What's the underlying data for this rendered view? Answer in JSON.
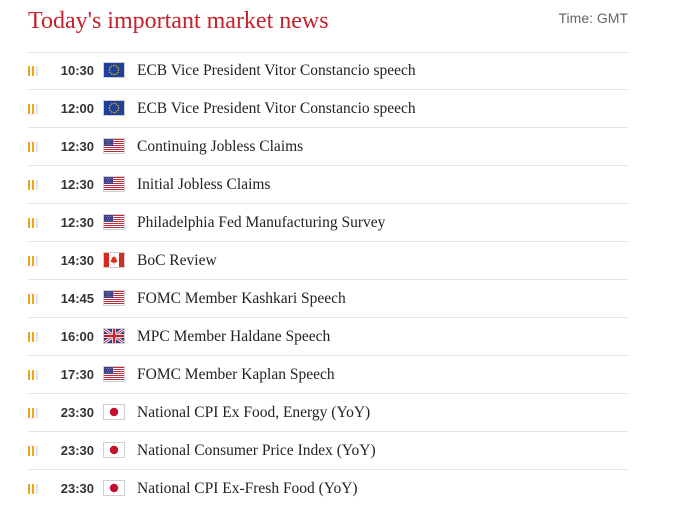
{
  "header": {
    "title": "Today's important market news",
    "timezone": "Time: GMT"
  },
  "events": [
    {
      "time": "10:30",
      "flag": "eu-flag-icon",
      "event": "ECB Vice President Vitor Constancio speech",
      "impact_level": 2
    },
    {
      "time": "12:00",
      "flag": "eu-flag-icon",
      "event": "ECB Vice President Vitor Constancio speech",
      "impact_level": 2
    },
    {
      "time": "12:30",
      "flag": "us-flag-icon",
      "event": "Continuing Jobless Claims",
      "impact_level": 2
    },
    {
      "time": "12:30",
      "flag": "us-flag-icon",
      "event": "Initial Jobless Claims",
      "impact_level": 2
    },
    {
      "time": "12:30",
      "flag": "us-flag-icon",
      "event": "Philadelphia Fed Manufacturing Survey",
      "impact_level": 2
    },
    {
      "time": "14:30",
      "flag": "ca-flag-icon",
      "event": "BoC Review",
      "impact_level": 2
    },
    {
      "time": "14:45",
      "flag": "us-flag-icon",
      "event": "FOMC Member Kashkari Speech",
      "impact_level": 2
    },
    {
      "time": "16:00",
      "flag": "uk-flag-icon",
      "event": "MPC Member Haldane Speech",
      "impact_level": 2
    },
    {
      "time": "17:30",
      "flag": "us-flag-icon",
      "event": "FOMC Member Kaplan Speech",
      "impact_level": 2
    },
    {
      "time": "23:30",
      "flag": "jp-flag-icon",
      "event": "National CPI Ex Food, Energy (YoY)",
      "impact_level": 2
    },
    {
      "time": "23:30",
      "flag": "jp-flag-icon",
      "event": "National Consumer Price Index (YoY)",
      "impact_level": 2
    },
    {
      "time": "23:30",
      "flag": "jp-flag-icon",
      "event": "National CPI Ex-Fresh Food (YoY)",
      "impact_level": 2
    }
  ],
  "colors": {
    "title": "#c8202a",
    "impact_active": "#f2a31b",
    "impact_inactive": "#e2e2e2",
    "divider": "#e3e3e3"
  }
}
